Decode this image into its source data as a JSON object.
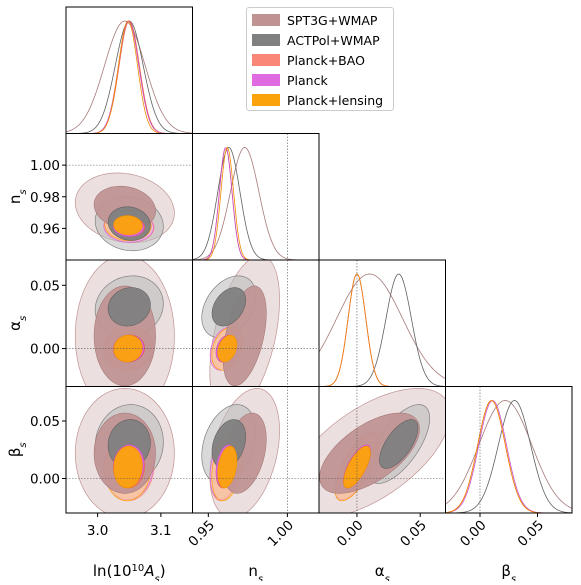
{
  "chart_data": {
    "type": "triangle-corner-plot",
    "parameters": [
      {
        "key": "lnAs",
        "label_main": "ln(10",
        "label_sup": "10",
        "label_tail": "A",
        "label_sub": "s",
        "label_close": ")",
        "range": [
          2.95,
          3.15
        ],
        "ticks": [
          3.0,
          3.1
        ],
        "tick_labels": [
          "3.0",
          "3.1"
        ],
        "fiducial": null
      },
      {
        "key": "ns",
        "label_main": "n",
        "label_sub": "s",
        "range": [
          0.94,
          1.02
        ],
        "ticks": [
          0.95,
          1.0
        ],
        "tick_labels": [
          "0.95",
          "1.00"
        ],
        "ytick_labels": [
          "0.96",
          "0.98",
          "1.00"
        ],
        "yticks": [
          0.96,
          0.98,
          1.0
        ],
        "fiducial": 1.0
      },
      {
        "key": "alphas",
        "label_main": "α",
        "label_sub": "s",
        "range": [
          -0.03,
          0.07
        ],
        "ticks": [
          0.0,
          0.05
        ],
        "tick_labels": [
          "0.00",
          "0.05"
        ],
        "fiducial": 0.0
      },
      {
        "key": "betas",
        "label_main": "β",
        "label_sub": "s",
        "range": [
          -0.03,
          0.08
        ],
        "ticks": [
          0.0,
          0.05
        ],
        "tick_labels": [
          "0.00",
          "0.05"
        ],
        "fiducial": 0.0
      }
    ],
    "series": [
      {
        "name": "SPT3G+WMAP",
        "color": "#c09393",
        "line": "#a77a7a",
        "mean": [
          3.043,
          0.973,
          0.01,
          0.022
        ],
        "sd": [
          0.032,
          0.009,
          0.026,
          0.023
        ],
        "corr": {
          "0-1": -0.15,
          "0-2": 0.0,
          "0-3": 0.0,
          "1-2": 0.45,
          "1-3": 0.35,
          "2-3": 0.6
        }
      },
      {
        "name": "ACTPol+WMAP",
        "color": "#808080",
        "line": "#606060",
        "mean": [
          3.05,
          0.963,
          0.033,
          0.03
        ],
        "sd": [
          0.022,
          0.007,
          0.01,
          0.014
        ],
        "corr": {
          "0-1": -0.1,
          "0-2": 0.1,
          "0-3": 0.05,
          "1-2": 0.35,
          "1-3": 0.3,
          "2-3": 0.65
        }
      },
      {
        "name": "Planck+BAO",
        "color": "#f98777",
        "line": "#ee6040",
        "mean": [
          3.05,
          0.961,
          0.0,
          0.01
        ],
        "sd": [
          0.016,
          0.004,
          0.007,
          0.012
        ],
        "corr": {
          "0-1": -0.05,
          "0-2": 0.05,
          "0-3": 0.05,
          "1-2": 0.3,
          "1-3": 0.3,
          "2-3": 0.7
        }
      },
      {
        "name": "Planck",
        "color": "#de6ce0",
        "line": "#c84fcb",
        "mean": [
          3.049,
          0.961,
          0.0,
          0.011
        ],
        "sd": [
          0.016,
          0.004,
          0.007,
          0.012
        ],
        "corr": {
          "0-1": -0.05,
          "0-2": 0.05,
          "0-3": 0.05,
          "1-2": 0.3,
          "1-3": 0.3,
          "2-3": 0.7
        }
      },
      {
        "name": "Planck+lensing",
        "color": "#fba30a",
        "line": "#f28c00",
        "mean": [
          3.048,
          0.962,
          0.0,
          0.01
        ],
        "sd": [
          0.015,
          0.004,
          0.007,
          0.012
        ],
        "corr": {
          "0-1": -0.05,
          "0-2": 0.05,
          "0-3": 0.05,
          "1-2": 0.3,
          "1-3": 0.3,
          "2-3": 0.7
        }
      }
    ],
    "legend_position": "top-right"
  }
}
